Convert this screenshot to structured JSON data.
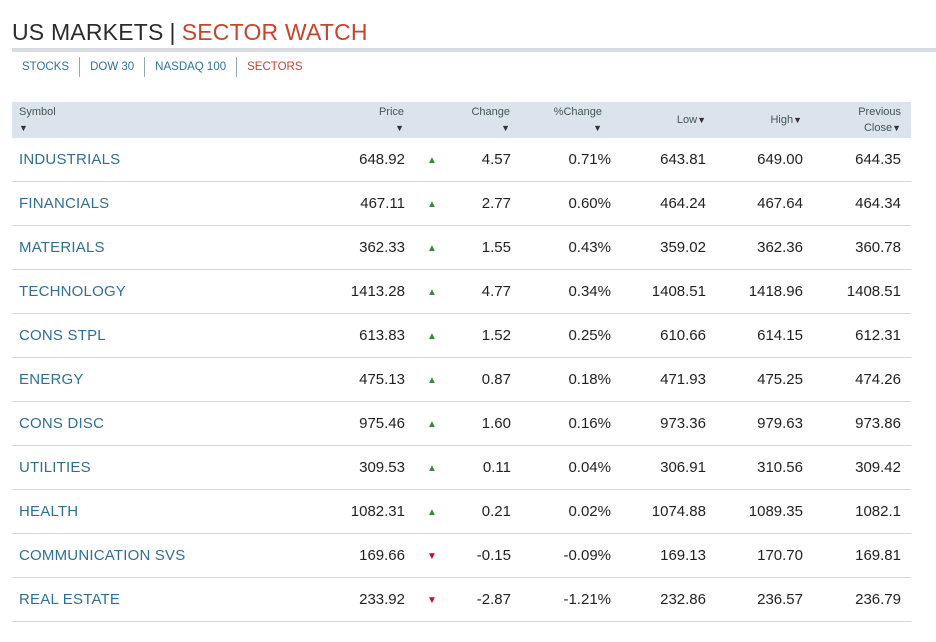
{
  "header": {
    "title_main": "US MARKETS",
    "separator": "|",
    "title_sub": "SECTOR WATCH"
  },
  "tabs": [
    {
      "label": "STOCKS",
      "active": false
    },
    {
      "label": "DOW 30",
      "active": false
    },
    {
      "label": "NASDAQ 100",
      "active": false
    },
    {
      "label": "SECTORS",
      "active": true
    }
  ],
  "table": {
    "columns": {
      "symbol": "Symbol",
      "price": "Price",
      "change": "Change",
      "pct_change": "%Change",
      "low": "Low",
      "high": "High",
      "previous": "Previous",
      "close": "Close"
    },
    "sort_arrow": "▼",
    "rows": [
      {
        "symbol": "INDUSTRIALS",
        "price": "648.92",
        "dir": "up",
        "change": "4.57",
        "pct": "0.71%",
        "low": "643.81",
        "high": "649.00",
        "prev_close": "644.35"
      },
      {
        "symbol": "FINANCIALS",
        "price": "467.11",
        "dir": "up",
        "change": "2.77",
        "pct": "0.60%",
        "low": "464.24",
        "high": "467.64",
        "prev_close": "464.34"
      },
      {
        "symbol": "MATERIALS",
        "price": "362.33",
        "dir": "up",
        "change": "1.55",
        "pct": "0.43%",
        "low": "359.02",
        "high": "362.36",
        "prev_close": "360.78"
      },
      {
        "symbol": "TECHNOLOGY",
        "price": "1413.28",
        "dir": "up",
        "change": "4.77",
        "pct": "0.34%",
        "low": "1408.51",
        "high": "1418.96",
        "prev_close": "1408.51"
      },
      {
        "symbol": "CONS STPL",
        "price": "613.83",
        "dir": "up",
        "change": "1.52",
        "pct": "0.25%",
        "low": "610.66",
        "high": "614.15",
        "prev_close": "612.31"
      },
      {
        "symbol": "ENERGY",
        "price": "475.13",
        "dir": "up",
        "change": "0.87",
        "pct": "0.18%",
        "low": "471.93",
        "high": "475.25",
        "prev_close": "474.26"
      },
      {
        "symbol": "CONS DISC",
        "price": "975.46",
        "dir": "up",
        "change": "1.60",
        "pct": "0.16%",
        "low": "973.36",
        "high": "979.63",
        "prev_close": "973.86"
      },
      {
        "symbol": "UTILITIES",
        "price": "309.53",
        "dir": "up",
        "change": "0.11",
        "pct": "0.04%",
        "low": "306.91",
        "high": "310.56",
        "prev_close": "309.42"
      },
      {
        "symbol": "HEALTH",
        "price": "1082.31",
        "dir": "up",
        "change": "0.21",
        "pct": "0.02%",
        "low": "1074.88",
        "high": "1089.35",
        "prev_close": "1082.1"
      },
      {
        "symbol": "COMMUNICATION SVS",
        "price": "169.66",
        "dir": "down",
        "change": "-0.15",
        "pct": "-0.09%",
        "low": "169.13",
        "high": "170.70",
        "prev_close": "169.81"
      },
      {
        "symbol": "REAL ESTATE",
        "price": "233.92",
        "dir": "down",
        "change": "-2.87",
        "pct": "-1.21%",
        "low": "232.86",
        "high": "236.57",
        "prev_close": "236.79"
      }
    ]
  },
  "icons": {
    "up": "triangle-up-icon",
    "down": "triangle-down-icon"
  },
  "colors": {
    "accent": "#c5452f",
    "link": "#2f6f93",
    "up": "#3a8a3a",
    "down": "#b5152b",
    "header_bg": "#dbe4ec"
  }
}
